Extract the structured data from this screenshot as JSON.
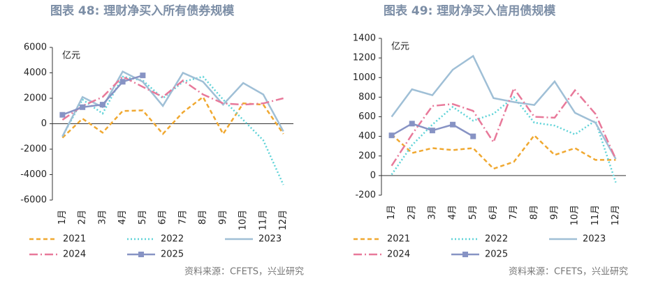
{
  "chart_data": [
    {
      "type": "line",
      "title": "图表 48: 理财净买入所有债券规模",
      "y_label": "亿元",
      "source": "资料来源：CFETS，兴业研究",
      "categories": [
        "1月",
        "2月",
        "3月",
        "4月",
        "5月",
        "6月",
        "7月",
        "8月",
        "9月",
        "10月",
        "11月",
        "12月"
      ],
      "ylim": [
        -6000,
        6000
      ],
      "yticks": [
        -6000,
        -4000,
        -2000,
        0,
        2000,
        4000,
        6000
      ],
      "grid": false,
      "series": [
        {
          "name": "2021",
          "color": "#f0a830",
          "values": [
            -1100,
            400,
            -700,
            1000,
            1050,
            -800,
            900,
            2100,
            -800,
            1600,
            1500,
            -800
          ]
        },
        {
          "name": "2022",
          "color": "#5fd3d8",
          "values": [
            -1000,
            1900,
            800,
            3700,
            3400,
            2000,
            3300,
            3700,
            1900,
            300,
            -1300,
            -4800
          ]
        },
        {
          "name": "2023",
          "color": "#9fbfd6",
          "values": [
            -1000,
            2100,
            1300,
            4100,
            3300,
            1400,
            4000,
            3300,
            1500,
            3200,
            2300,
            -600
          ]
        },
        {
          "name": "2024",
          "color": "#e8799a",
          "values": [
            300,
            1400,
            2100,
            3700,
            2900,
            2100,
            3400,
            2300,
            1600,
            1500,
            1600,
            2000
          ]
        },
        {
          "name": "2025",
          "color": "#8793c4",
          "values": [
            700,
            1300,
            1500,
            3300,
            3800,
            null,
            null,
            null,
            null,
            null,
            null,
            null
          ]
        }
      ]
    },
    {
      "type": "line",
      "title": "图表 49: 理财净买入信用债规模",
      "y_label": "亿元",
      "source": "资料来源：CFETS，兴业研究",
      "categories": [
        "1月",
        "2月",
        "3月",
        "4月",
        "5月",
        "6月",
        "7月",
        "8月",
        "9月",
        "10月",
        "11月",
        "12月"
      ],
      "ylim": [
        -200,
        1400
      ],
      "yticks": [
        -200,
        0,
        200,
        400,
        600,
        800,
        1000,
        1200,
        1400
      ],
      "grid": false,
      "series": [
        {
          "name": "2021",
          "color": "#f0a830",
          "values": [
            420,
            230,
            280,
            260,
            280,
            70,
            140,
            410,
            210,
            280,
            160,
            160
          ]
        },
        {
          "name": "2022",
          "color": "#5fd3d8",
          "values": [
            10,
            310,
            520,
            700,
            560,
            630,
            800,
            540,
            510,
            420,
            560,
            -70
          ]
        },
        {
          "name": "2023",
          "color": "#9fbfd6",
          "values": [
            600,
            880,
            820,
            1080,
            1220,
            790,
            750,
            720,
            960,
            640,
            540,
            170
          ]
        },
        {
          "name": "2024",
          "color": "#e8799a",
          "values": [
            100,
            420,
            710,
            730,
            660,
            340,
            890,
            600,
            590,
            870,
            630,
            170
          ]
        },
        {
          "name": "2025",
          "color": "#8793c4",
          "values": [
            410,
            530,
            460,
            520,
            400,
            null,
            null,
            null,
            null,
            null,
            null,
            null
          ]
        }
      ]
    }
  ]
}
